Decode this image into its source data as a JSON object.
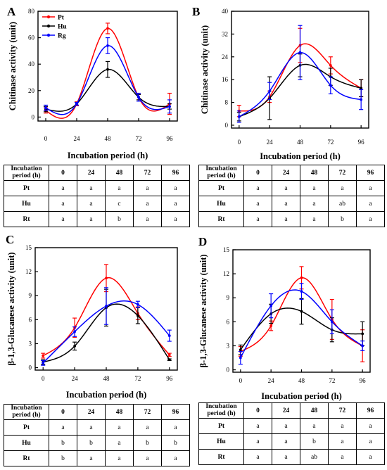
{
  "colors": {
    "Pt": "#ff0000",
    "Hu": "#000000",
    "Rg": "#0000ff"
  },
  "panels": [
    {
      "id": "A",
      "letter": "A",
      "chart_data": {
        "type": "line",
        "xlabel": "Incubation period (h)",
        "ylabel": "Chitinase activity (unit)",
        "x": [
          0,
          24,
          48,
          72,
          96
        ],
        "xticks": [
          "0",
          "24",
          "48",
          "72",
          "96"
        ],
        "ylim": [
          -3,
          80
        ],
        "yticks": [
          0,
          20,
          40,
          60,
          80
        ],
        "legend": "top-left",
        "series": [
          {
            "name": "Pt",
            "color": "#ff0000",
            "values": [
              5,
              10,
              67,
              15,
              10
            ],
            "errors": [
              2,
              1.5,
              4,
              2,
              8
            ]
          },
          {
            "name": "Hu",
            "color": "#000000",
            "values": [
              6,
              10,
              36,
              15,
              8
            ],
            "errors": [
              2,
              1,
              6,
              2,
              2
            ]
          },
          {
            "name": "Rg",
            "color": "#0000ff",
            "values": [
              7,
              10,
              54,
              15,
              8
            ],
            "errors": [
              2,
              1,
              6,
              3,
              5
            ]
          }
        ]
      },
      "table": {
        "corner_line1": "Incubation",
        "corner_line2": "period (h)",
        "columns": [
          "0",
          "24",
          "48",
          "72",
          "96"
        ],
        "rows": [
          {
            "label": "Pt",
            "cells": [
              "a",
              "a",
              "a",
              "a",
              "a"
            ]
          },
          {
            "label": "Hu",
            "cells": [
              "a",
              "a",
              "c",
              "a",
              "a"
            ]
          },
          {
            "label": "Rt",
            "cells": [
              "a",
              "a",
              "b",
              "a",
              "a"
            ]
          }
        ]
      }
    },
    {
      "id": "B",
      "letter": "B",
      "chart_data": {
        "type": "line",
        "xlabel": "Incubation period (h)",
        "ylabel": "Chitinase activity (unit)",
        "x": [
          0,
          24,
          48,
          72,
          96
        ],
        "xticks": [
          "0",
          "24",
          "48",
          "72",
          "96"
        ],
        "ylim": [
          -1,
          40
        ],
        "yticks": [
          0,
          8,
          16,
          24,
          32,
          40
        ],
        "series": [
          {
            "name": "Pt",
            "color": "#ff0000",
            "values": [
              5,
              10,
              28,
              21,
              13
            ],
            "errors": [
              2,
              2,
              6,
              3,
              3
            ]
          },
          {
            "name": "Hu",
            "color": "#000000",
            "values": [
              3,
              9.5,
              21,
              17,
              13
            ],
            "errors": [
              1.5,
              7.5,
              4,
              3,
              3
            ]
          },
          {
            "name": "Rg",
            "color": "#0000ff",
            "values": [
              3,
              12,
              25.5,
              14,
              9
            ],
            "errors": [
              2,
              3,
              9.5,
              3,
              3.5
            ]
          }
        ]
      },
      "table": {
        "corner_line1": "Incubation",
        "corner_line2": "period (h)",
        "columns": [
          "0",
          "24",
          "48",
          "72",
          "96"
        ],
        "rows": [
          {
            "label": "Pt",
            "cells": [
              "a",
              "a",
              "a",
              "a",
              "a"
            ]
          },
          {
            "label": "Hu",
            "cells": [
              "a",
              "a",
              "a",
              "ab",
              "a"
            ]
          },
          {
            "label": "Rt",
            "cells": [
              "a",
              "a",
              "a",
              "b",
              "a"
            ]
          }
        ]
      }
    },
    {
      "id": "C",
      "letter": "C",
      "chart_data": {
        "type": "line",
        "xlabel": "Incubation period (h)",
        "ylabel": "β-1,3-Glucanese activity (unit)",
        "x": [
          0,
          24,
          48,
          72,
          96
        ],
        "xticks": [
          "0",
          "24",
          "48",
          "72",
          "96"
        ],
        "ylim": [
          -0.3,
          15
        ],
        "yticks": [
          0,
          3,
          6,
          9,
          12,
          15
        ],
        "series": [
          {
            "name": "Pt",
            "color": "#ff0000",
            "values": [
              1.5,
              5,
              11.2,
              6.8,
              1.6
            ],
            "errors": [
              0.3,
              1.2,
              1.7,
              0.8,
              0.2
            ]
          },
          {
            "name": "Hu",
            "color": "#000000",
            "values": [
              0.7,
              2.7,
              7.5,
              6.5,
              1.0
            ],
            "errors": [
              0.3,
              0.5,
              2.3,
              1.0,
              0.1
            ]
          },
          {
            "name": "Rg",
            "color": "#0000ff",
            "values": [
              0.6,
              4.5,
              7.7,
              7.9,
              4.0
            ],
            "errors": [
              0.3,
              0.6,
              2.3,
              0.4,
              0.7
            ]
          }
        ]
      },
      "table": {
        "corner_line1": "Incubation",
        "corner_line2": "period (h)",
        "columns": [
          "0",
          "24",
          "48",
          "72",
          "96"
        ],
        "rows": [
          {
            "label": "Pt",
            "cells": [
              "a",
              "a",
              "a",
              "a",
              "a"
            ]
          },
          {
            "label": "Hu",
            "cells": [
              "b",
              "b",
              "a",
              "b",
              "b"
            ]
          },
          {
            "label": "Rt",
            "cells": [
              "b",
              "a",
              "a",
              "a",
              "a"
            ]
          }
        ]
      }
    },
    {
      "id": "D",
      "letter": "D",
      "chart_data": {
        "type": "line",
        "xlabel": "Incubation period (h)",
        "ylabel": "β-1,3-Glucanese activity (unit)",
        "x": [
          0,
          24,
          48,
          72,
          96
        ],
        "xticks": [
          "0",
          "24",
          "48",
          "72",
          "96"
        ],
        "ylim": [
          -0.3,
          15
        ],
        "yticks": [
          0,
          3,
          6,
          9,
          12,
          15
        ],
        "series": [
          {
            "name": "Pt",
            "color": "#ff0000",
            "values": [
              2.3,
              5.5,
              11.5,
              6.3,
              3.0
            ],
            "errors": [
              0.6,
              0.6,
              1.4,
              2.5,
              2.0
            ]
          },
          {
            "name": "Hu",
            "color": "#000000",
            "values": [
              2.5,
              7.0,
              7.3,
              5.0,
              4.5
            ],
            "errors": [
              0.6,
              1.2,
              1.6,
              1.5,
              1.5
            ]
          },
          {
            "name": "Rg",
            "color": "#0000ff",
            "values": [
              1.5,
              8.0,
              9.8,
              6.0,
              3.0
            ],
            "errors": [
              0.8,
              1.5,
              1.0,
              1.5,
              0.6
            ]
          }
        ]
      },
      "table": {
        "corner_line1": "Incubation",
        "corner_line2": "period (h)",
        "columns": [
          "0",
          "24",
          "48",
          "72",
          "96"
        ],
        "rows": [
          {
            "label": "Pt",
            "cells": [
              "a",
              "a",
              "a",
              "a",
              "a"
            ]
          },
          {
            "label": "Hu",
            "cells": [
              "a",
              "a",
              "b",
              "a",
              "a"
            ]
          },
          {
            "label": "Rt",
            "cells": [
              "a",
              "a",
              "ab",
              "a",
              "a"
            ]
          }
        ]
      }
    }
  ]
}
